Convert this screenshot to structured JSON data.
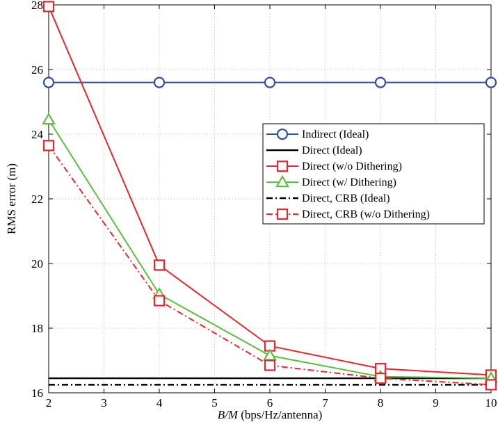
{
  "chart_data": {
    "type": "line",
    "title": "",
    "xlabel_var": "B/M",
    "xlabel_rest": " (bps/Hz/antenna)",
    "ylabel": "RMS error (m)",
    "xlim": [
      2,
      10
    ],
    "ylim": [
      16,
      28
    ],
    "xticks": [
      "2",
      "3",
      "4",
      "5",
      "6",
      "7",
      "8",
      "9",
      "10"
    ],
    "yticks": [
      "16",
      "18",
      "20",
      "22",
      "24",
      "26",
      "28"
    ],
    "grid": true,
    "legend_position": "center-right",
    "series": [
      {
        "name": "Indirect (Ideal)",
        "color": "#2b4fa3",
        "dash": "solid",
        "marker": "circle",
        "x": [
          2,
          4,
          6,
          8,
          10
        ],
        "y": [
          25.6,
          25.6,
          25.6,
          25.6,
          25.6
        ]
      },
      {
        "name": "Direct (Ideal)",
        "color": "#000000",
        "dash": "solid",
        "marker": "none",
        "x": [
          2,
          10
        ],
        "y": [
          16.45,
          16.45
        ]
      },
      {
        "name": "Direct (w/o Dithering)",
        "color": "#e8262d",
        "dash": "solid",
        "marker": "square",
        "x": [
          2,
          4,
          6,
          8,
          10
        ],
        "y": [
          27.95,
          19.95,
          17.45,
          16.75,
          16.55
        ]
      },
      {
        "name": "Direct (w/ Dithering)",
        "color": "#5bbf3f",
        "dash": "solid",
        "marker": "triangle",
        "x": [
          2,
          4,
          6,
          8,
          10
        ],
        "y": [
          24.45,
          19.05,
          17.15,
          16.5,
          16.45
        ]
      },
      {
        "name": "Direct, CRB (Ideal)",
        "color": "#000000",
        "dash": "dashdot",
        "marker": "none",
        "x": [
          2,
          10
        ],
        "y": [
          16.25,
          16.25
        ]
      },
      {
        "name": "Direct, CRB (w/o Dithering)",
        "color": "#e8262d",
        "dash": "dashdot",
        "marker": "square",
        "x": [
          2,
          4,
          6,
          8,
          10
        ],
        "y": [
          23.65,
          18.85,
          16.85,
          16.45,
          16.25
        ]
      }
    ]
  }
}
